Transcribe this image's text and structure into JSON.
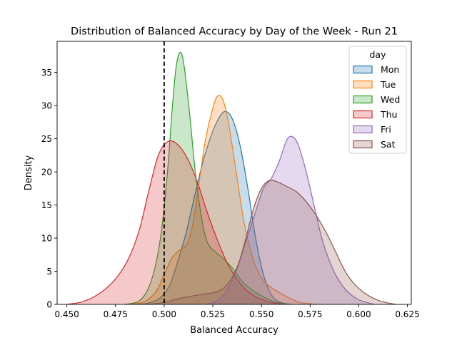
{
  "chart_data": {
    "type": "area",
    "title": "Distribution of Balanced Accuracy by Day of the Week - Run 21",
    "xlabel": "Balanced Accuracy",
    "ylabel": "Density",
    "xlim": [
      0.445,
      0.627
    ],
    "ylim": [
      0,
      39.7
    ],
    "xticks": [
      "0.450",
      "0.475",
      "0.500",
      "0.525",
      "0.550",
      "0.575",
      "0.600",
      "0.625"
    ],
    "yticks": [
      "0",
      "5",
      "10",
      "15",
      "20",
      "25",
      "30",
      "35"
    ],
    "grid": false,
    "legend": {
      "title": "day",
      "placement": "top-right"
    },
    "reference_line": {
      "x": 0.5,
      "style": "dashed",
      "color": "#000000"
    },
    "series": [
      {
        "name": "Mon",
        "color": "#1f77b4",
        "points": [
          [
            0.486,
            0
          ],
          [
            0.492,
            0.2
          ],
          [
            0.498,
            1
          ],
          [
            0.503,
            3
          ],
          [
            0.507,
            6.5
          ],
          [
            0.511,
            10.5
          ],
          [
            0.515,
            15.5
          ],
          [
            0.519,
            20.5
          ],
          [
            0.523,
            24.5
          ],
          [
            0.527,
            27.5
          ],
          [
            0.531,
            29.1
          ],
          [
            0.535,
            28
          ],
          [
            0.539,
            24
          ],
          [
            0.543,
            17.5
          ],
          [
            0.547,
            10
          ],
          [
            0.551,
            4.5
          ],
          [
            0.555,
            1.5
          ],
          [
            0.559,
            0.4
          ],
          [
            0.565,
            0
          ]
        ]
      },
      {
        "name": "Tue",
        "color": "#ff7f0e",
        "points": [
          [
            0.482,
            0
          ],
          [
            0.49,
            0.4
          ],
          [
            0.496,
            2
          ],
          [
            0.5,
            4.5
          ],
          [
            0.504,
            7
          ],
          [
            0.508,
            8.2
          ],
          [
            0.512,
            9.2
          ],
          [
            0.515,
            12.5
          ],
          [
            0.518,
            18.5
          ],
          [
            0.521,
            24.5
          ],
          [
            0.524,
            28.5
          ],
          [
            0.527,
            31.3
          ],
          [
            0.53,
            31
          ],
          [
            0.533,
            27.5
          ],
          [
            0.537,
            20
          ],
          [
            0.541,
            12.5
          ],
          [
            0.545,
            7.5
          ],
          [
            0.549,
            4.5
          ],
          [
            0.553,
            3
          ],
          [
            0.558,
            2
          ],
          [
            0.564,
            1
          ],
          [
            0.57,
            0.3
          ],
          [
            0.578,
            0
          ]
        ]
      },
      {
        "name": "Wed",
        "color": "#2ca02c",
        "points": [
          [
            0.48,
            0
          ],
          [
            0.487,
            0.5
          ],
          [
            0.492,
            2.5
          ],
          [
            0.496,
            6.5
          ],
          [
            0.499,
            12
          ],
          [
            0.502,
            21
          ],
          [
            0.504,
            29
          ],
          [
            0.506,
            35.5
          ],
          [
            0.508,
            38
          ],
          [
            0.51,
            36.5
          ],
          [
            0.513,
            29
          ],
          [
            0.516,
            20
          ],
          [
            0.519,
            13.5
          ],
          [
            0.522,
            9.5
          ],
          [
            0.526,
            8
          ],
          [
            0.53,
            7
          ],
          [
            0.535,
            5.5
          ],
          [
            0.54,
            3.5
          ],
          [
            0.546,
            2
          ],
          [
            0.552,
            1
          ],
          [
            0.558,
            0.3
          ],
          [
            0.565,
            0
          ]
        ]
      },
      {
        "name": "Thu",
        "color": "#d62728",
        "points": [
          [
            0.45,
            0
          ],
          [
            0.458,
            0.4
          ],
          [
            0.466,
            1.5
          ],
          [
            0.474,
            3.5
          ],
          [
            0.481,
            6.5
          ],
          [
            0.487,
            11
          ],
          [
            0.492,
            17
          ],
          [
            0.497,
            22.5
          ],
          [
            0.502,
            24.6
          ],
          [
            0.507,
            24.1
          ],
          [
            0.512,
            22
          ],
          [
            0.517,
            18.5
          ],
          [
            0.522,
            14
          ],
          [
            0.527,
            10
          ],
          [
            0.532,
            6.5
          ],
          [
            0.537,
            4
          ],
          [
            0.542,
            2.2
          ],
          [
            0.548,
            1
          ],
          [
            0.555,
            0.3
          ],
          [
            0.562,
            0
          ]
        ]
      },
      {
        "name": "Fri",
        "color": "#9467bd",
        "points": [
          [
            0.522,
            0
          ],
          [
            0.527,
            0.5
          ],
          [
            0.532,
            2
          ],
          [
            0.537,
            5
          ],
          [
            0.542,
            9.5
          ],
          [
            0.547,
            14
          ],
          [
            0.551,
            17.5
          ],
          [
            0.555,
            19
          ],
          [
            0.559,
            21.5
          ],
          [
            0.563,
            24.8
          ],
          [
            0.566,
            25.3
          ],
          [
            0.569,
            24
          ],
          [
            0.573,
            20
          ],
          [
            0.577,
            15
          ],
          [
            0.581,
            10
          ],
          [
            0.585,
            6.5
          ],
          [
            0.589,
            4
          ],
          [
            0.594,
            2
          ],
          [
            0.6,
            0.7
          ],
          [
            0.608,
            0
          ]
        ]
      },
      {
        "name": "Sat",
        "color": "#8c564b",
        "points": [
          [
            0.492,
            0
          ],
          [
            0.5,
            0.3
          ],
          [
            0.508,
            0.9
          ],
          [
            0.515,
            1.3
          ],
          [
            0.522,
            1.6
          ],
          [
            0.528,
            2
          ],
          [
            0.533,
            3.2
          ],
          [
            0.538,
            6
          ],
          [
            0.542,
            10
          ],
          [
            0.546,
            14.5
          ],
          [
            0.55,
            17.5
          ],
          [
            0.554,
            18.7
          ],
          [
            0.558,
            18.5
          ],
          [
            0.563,
            17.8
          ],
          [
            0.568,
            17
          ],
          [
            0.573,
            15.5
          ],
          [
            0.578,
            13.5
          ],
          [
            0.583,
            11
          ],
          [
            0.588,
            8
          ],
          [
            0.593,
            5
          ],
          [
            0.598,
            3
          ],
          [
            0.604,
            1.5
          ],
          [
            0.611,
            0.5
          ],
          [
            0.619,
            0
          ]
        ]
      }
    ]
  }
}
